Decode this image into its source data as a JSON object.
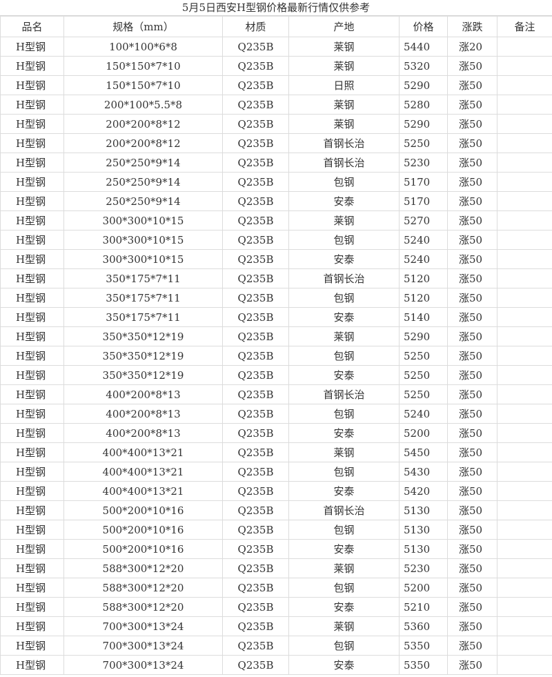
{
  "title": "5月5日西安H型钢价格最新行情仅供参考",
  "headers": [
    "品名",
    "规格（mm）",
    "材质",
    "产地",
    "价格",
    "涨跌",
    "备注"
  ],
  "rows": [
    [
      "H型钢",
      "100*100*6*8",
      "Q235B",
      "莱钢",
      "5440",
      "涨20",
      ""
    ],
    [
      "H型钢",
      "150*150*7*10",
      "Q235B",
      "莱钢",
      "5320",
      "涨50",
      ""
    ],
    [
      "H型钢",
      "150*150*7*10",
      "Q235B",
      "日照",
      "5290",
      "涨50",
      ""
    ],
    [
      "H型钢",
      "200*100*5.5*8",
      "Q235B",
      "莱钢",
      "5280",
      "涨50",
      ""
    ],
    [
      "H型钢",
      "200*200*8*12",
      "Q235B",
      "莱钢",
      "5290",
      "涨50",
      ""
    ],
    [
      "H型钢",
      "200*200*8*12",
      "Q235B",
      "首钢长治",
      "5250",
      "涨50",
      ""
    ],
    [
      "H型钢",
      "250*250*9*14",
      "Q235B",
      "首钢长治",
      "5230",
      "涨50",
      ""
    ],
    [
      "H型钢",
      "250*250*9*14",
      "Q235B",
      "包钢",
      "5170",
      "涨50",
      ""
    ],
    [
      "H型钢",
      "250*250*9*14",
      "Q235B",
      "安泰",
      "5170",
      "涨50",
      ""
    ],
    [
      "H型钢",
      "300*300*10*15",
      "Q235B",
      "莱钢",
      "5270",
      "涨50",
      ""
    ],
    [
      "H型钢",
      "300*300*10*15",
      "Q235B",
      "包钢",
      "5240",
      "涨50",
      ""
    ],
    [
      "H型钢",
      "300*300*10*15",
      "Q235B",
      "安泰",
      "5240",
      "涨50",
      ""
    ],
    [
      "H型钢",
      "350*175*7*11",
      "Q235B",
      "首钢长治",
      "5120",
      "涨50",
      ""
    ],
    [
      "H型钢",
      "350*175*7*11",
      "Q235B",
      "包钢",
      "5120",
      "涨50",
      ""
    ],
    [
      "H型钢",
      "350*175*7*11",
      "Q235B",
      "安泰",
      "5140",
      "涨50",
      ""
    ],
    [
      "H型钢",
      "350*350*12*19",
      "Q235B",
      "莱钢",
      "5290",
      "涨50",
      ""
    ],
    [
      "H型钢",
      "350*350*12*19",
      "Q235B",
      "包钢",
      "5250",
      "涨50",
      ""
    ],
    [
      "H型钢",
      "350*350*12*19",
      "Q235B",
      "安泰",
      "5250",
      "涨50",
      ""
    ],
    [
      "H型钢",
      "400*200*8*13",
      "Q235B",
      "首钢长治",
      "5250",
      "涨50",
      ""
    ],
    [
      "H型钢",
      "400*200*8*13",
      "Q235B",
      "包钢",
      "5240",
      "涨50",
      ""
    ],
    [
      "H型钢",
      "400*200*8*13",
      "Q235B",
      "安泰",
      "5200",
      "涨50",
      ""
    ],
    [
      "H型钢",
      "400*400*13*21",
      "Q235B",
      "莱钢",
      "5450",
      "涨50",
      ""
    ],
    [
      "H型钢",
      "400*400*13*21",
      "Q235B",
      "包钢",
      "5430",
      "涨50",
      ""
    ],
    [
      "H型钢",
      "400*400*13*21",
      "Q235B",
      "安泰",
      "5420",
      "涨50",
      ""
    ],
    [
      "H型钢",
      "500*200*10*16",
      "Q235B",
      "首钢长治",
      "5130",
      "涨50",
      ""
    ],
    [
      "H型钢",
      "500*200*10*16",
      "Q235B",
      "包钢",
      "5130",
      "涨50",
      ""
    ],
    [
      "H型钢",
      "500*200*10*16",
      "Q235B",
      "安泰",
      "5130",
      "涨50",
      ""
    ],
    [
      "H型钢",
      "588*300*12*20",
      "Q235B",
      "莱钢",
      "5230",
      "涨50",
      ""
    ],
    [
      "H型钢",
      "588*300*12*20",
      "Q235B",
      "包钢",
      "5200",
      "涨50",
      ""
    ],
    [
      "H型钢",
      "588*300*12*20",
      "Q235B",
      "安泰",
      "5210",
      "涨50",
      ""
    ],
    [
      "H型钢",
      "700*300*13*24",
      "Q235B",
      "莱钢",
      "5360",
      "涨50",
      ""
    ],
    [
      "H型钢",
      "700*300*13*24",
      "Q235B",
      "包钢",
      "5350",
      "涨50",
      ""
    ],
    [
      "H型钢",
      "700*300*13*24",
      "Q235B",
      "安泰",
      "5350",
      "涨50",
      ""
    ]
  ]
}
